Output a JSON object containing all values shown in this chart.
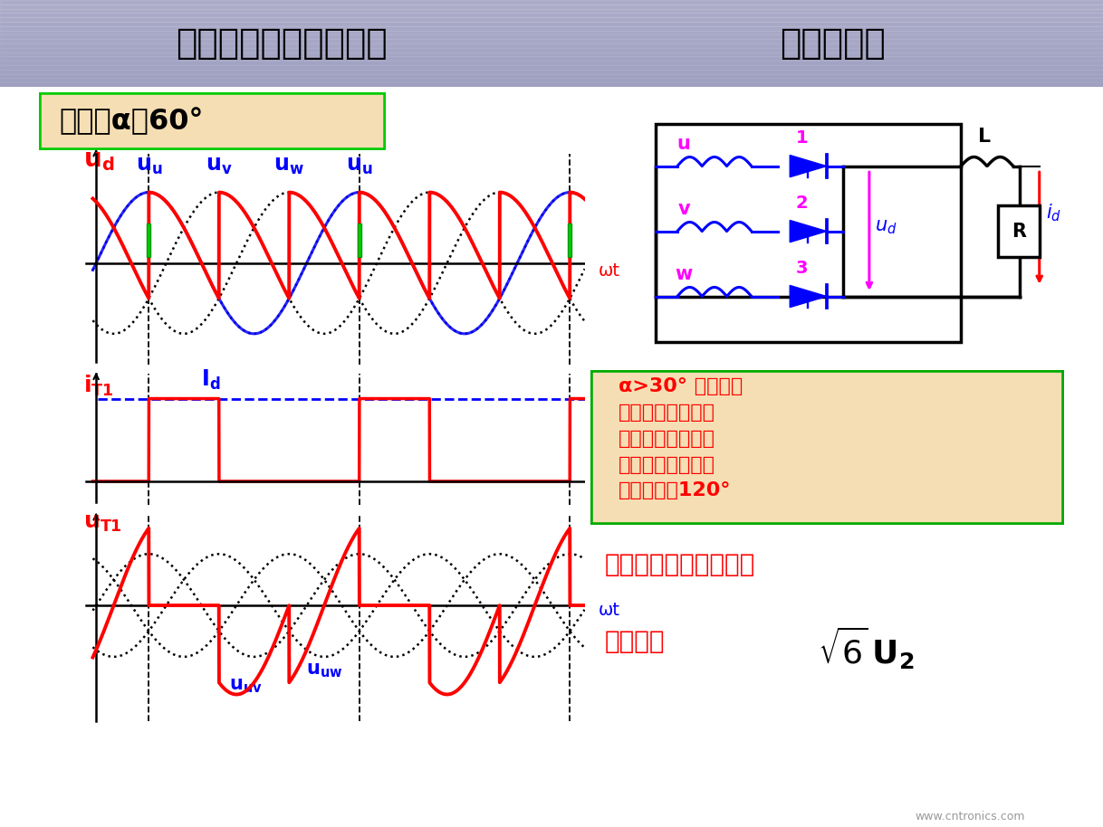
{
  "title_left": "三相半波可控整流电路",
  "title_right": "电感性负载",
  "ctrl_angle_text": "控制角α＝60°",
  "ctrl_box_bg": "#f5deb3",
  "ctrl_box_border": "#00cc00",
  "note_lines": [
    "α>30° 时，电压",
    "波形出现负值，波",
    "形连续，输出电压",
    "平均值下降，晶闸",
    "管导通角为120°"
  ],
  "note_bg": "#f5deb3",
  "note_border": "#00aa00",
  "bottom1": "晶闸管承受的最大正反",
  "bottom2": "向压降为",
  "watermark": "www.cntronics.com",
  "header_color": "#9999bb",
  "phase_label_u": "u",
  "phase_label_v": "v",
  "phase_label_w": "w",
  "num1": "1",
  "num2": "2",
  "num3": "3",
  "label_L": "L",
  "label_R": "R",
  "label_ud_ckt": "u_d",
  "label_id_ckt": "i_d",
  "alpha_deg": 60,
  "ud_label": "u_d",
  "iT1_label": "i_{T1}",
  "Id_label": "I_d",
  "uT1_label": "u_{T1}",
  "uu_label": "u_u",
  "uv_label": "u_v",
  "uw_label": "u_w",
  "uuv_label": "u_{uv}",
  "uuw_label": "u_{uw}",
  "omega_t": "ωt"
}
